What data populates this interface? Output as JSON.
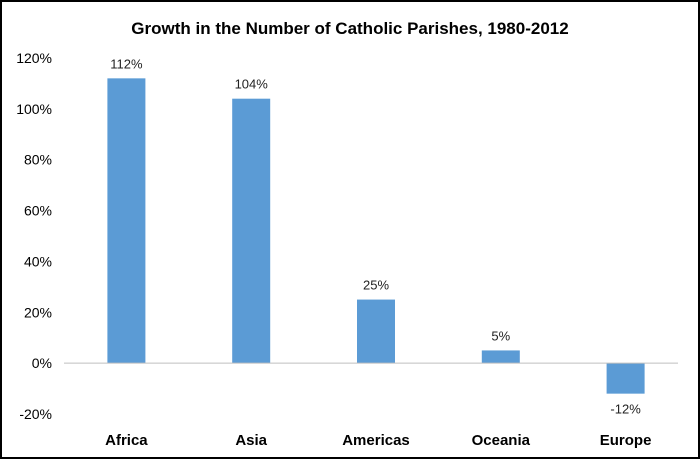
{
  "chart_data": {
    "type": "bar",
    "title": "Growth in the Number of Catholic Parishes, 1980-2012",
    "categories": [
      "Africa",
      "Asia",
      "Americas",
      "Oceania",
      "Europe"
    ],
    "values": [
      112,
      104,
      25,
      5,
      -12
    ],
    "data_labels": [
      "112%",
      "104%",
      "25%",
      "5%",
      "-12%"
    ],
    "ylim": [
      -20,
      120
    ],
    "yticks": [
      -20,
      0,
      20,
      40,
      60,
      80,
      100,
      120
    ],
    "ytick_labels": [
      "-20%",
      "0%",
      "20%",
      "40%",
      "60%",
      "80%",
      "100%",
      "120%"
    ],
    "bar_color": "#5b9bd5",
    "grid": false,
    "legend": "none"
  }
}
